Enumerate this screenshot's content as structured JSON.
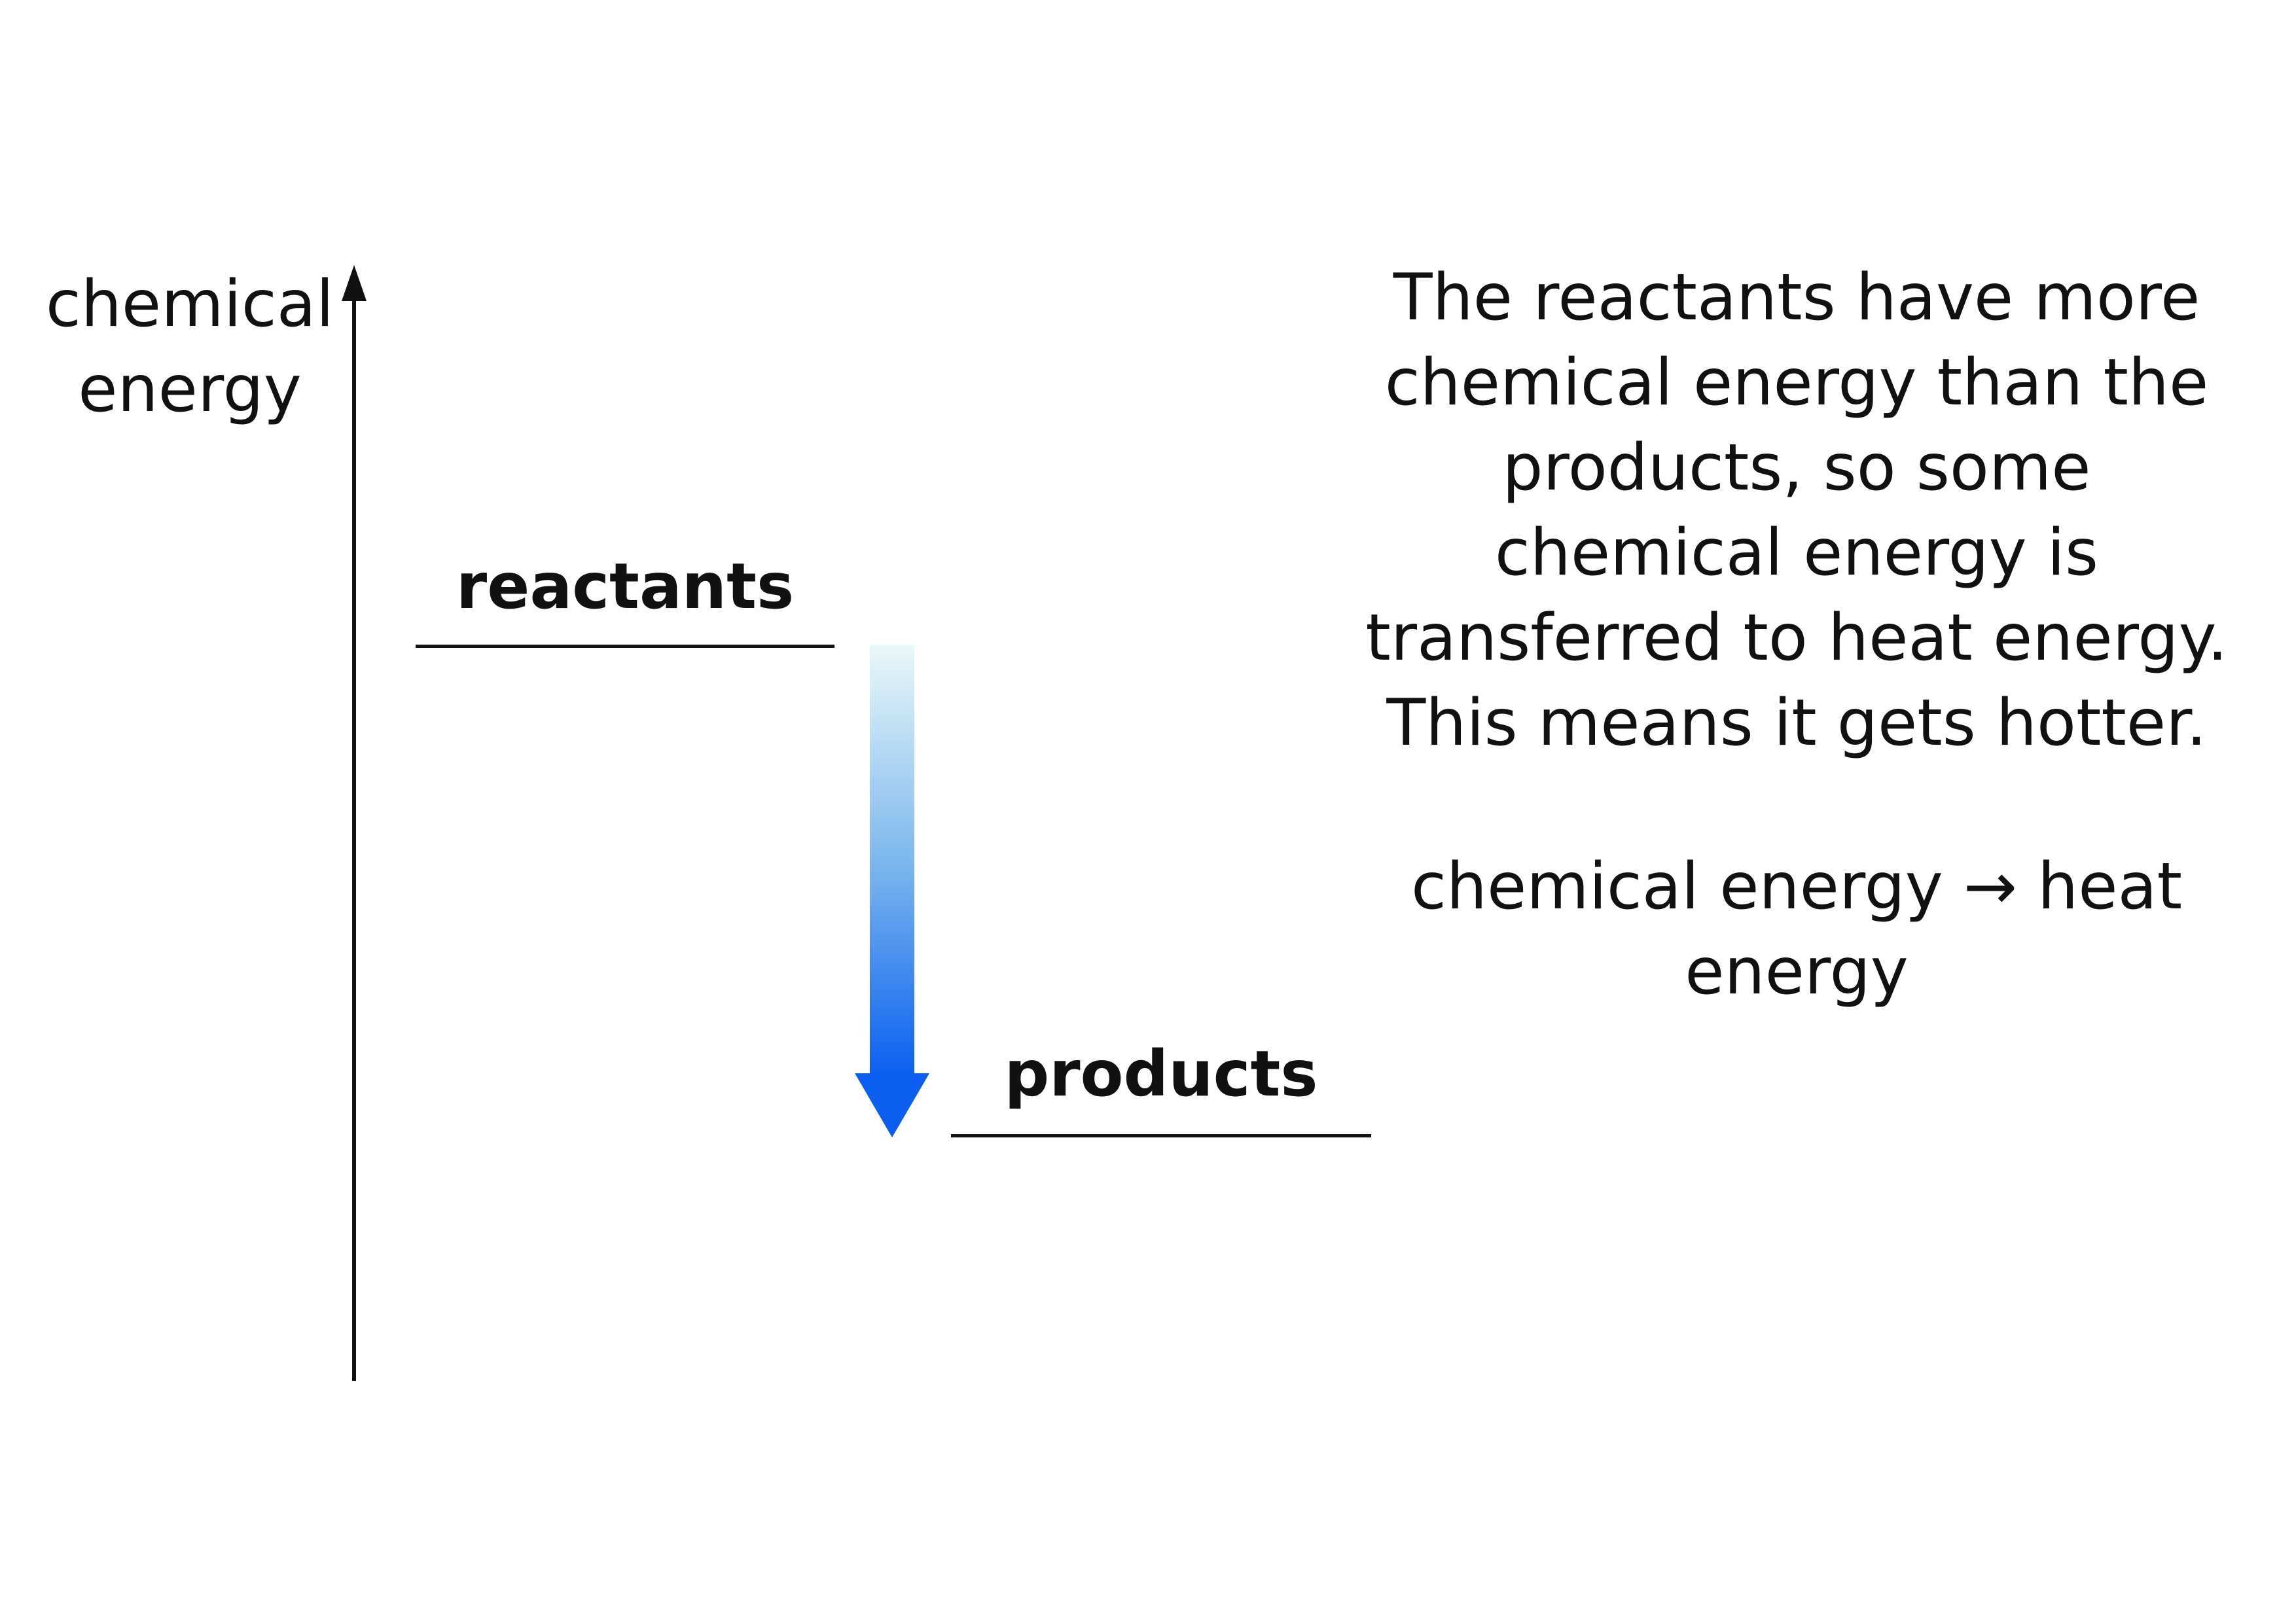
{
  "axis": {
    "label_line1": "chemical",
    "label_line2": "energy"
  },
  "levels": {
    "reactants": "reactants",
    "products": "products"
  },
  "explanation": [
    "The reactants have more",
    "chemical energy than the",
    "products, so some",
    "chemical energy is",
    "transferred to heat energy.",
    "This means it gets hotter."
  ],
  "equation": {
    "from": "chemical energy",
    "arrow": "→",
    "to": "heat energy"
  },
  "colors": {
    "arrow_top": "#eaf8f8",
    "arrow_bottom": "#0a5ff0",
    "ink": "#111111"
  }
}
